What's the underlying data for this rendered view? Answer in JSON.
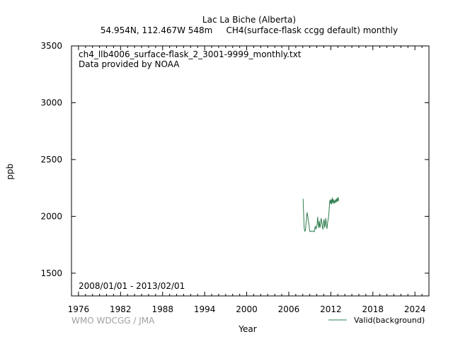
{
  "header": {
    "line1": "Lac La Biche (Alberta)",
    "line2": "54.954N, 112.467W 548m     CH4(surface-flask ccgg default) monthly"
  },
  "annotations": {
    "filename": "ch4_llb4006_surface-flask_2_3001-9999_monthly.txt",
    "provider": "Data provided by NOAA",
    "date_range": "2008/01/01 - 2013/02/01"
  },
  "footer": {
    "credit": "WMO WDCGG / JMA"
  },
  "colors": {
    "series": "#2e7d4f",
    "credit": "#a0a0a0"
  },
  "chart_data": {
    "type": "line",
    "xlabel": "Year",
    "ylabel": "ppb",
    "xlim": [
      1975,
      2026
    ],
    "ylim": [
      1300,
      3500
    ],
    "xticks": [
      1976,
      1982,
      1988,
      1994,
      2000,
      2006,
      2012,
      2018,
      2024
    ],
    "yticks": [
      1500,
      2000,
      2500,
      3000,
      3500
    ],
    "grid": false,
    "legend_position": "bottom-right",
    "series": [
      {
        "name": "Valid(background)",
        "x": [
          2008.04,
          2008.12,
          2008.21,
          2008.29,
          2008.37,
          2008.46,
          2008.54,
          2008.62,
          2008.71,
          2008.79,
          2008.87,
          2008.96,
          2009.04,
          2009.12,
          2009.21,
          2009.29,
          2009.37,
          2009.46,
          2009.54,
          2009.62,
          2009.71,
          2009.79,
          2009.87,
          2009.96,
          2010.04,
          2010.12,
          2010.21,
          2010.29,
          2010.37,
          2010.46,
          2010.54,
          2010.62,
          2010.71,
          2010.79,
          2010.87,
          2010.96,
          2011.04,
          2011.12,
          2011.21,
          2011.29,
          2011.37,
          2011.46,
          2011.54,
          2011.62,
          2011.71,
          2011.79,
          2011.87,
          2011.96,
          2012.04,
          2012.12,
          2012.21,
          2012.29,
          2012.37,
          2012.46,
          2012.54,
          2012.62,
          2012.71,
          2012.79,
          2012.87,
          2012.96,
          2013.04,
          2013.12
        ],
        "y": [
          2155,
          2010,
          1895,
          1870,
          1875,
          1930,
          1985,
          2035,
          2005,
          1955,
          1940,
          1880,
          1865,
          1870,
          1870,
          1870,
          1870,
          1870,
          1870,
          1865,
          1890,
          1915,
          1890,
          1900,
          1930,
          1995,
          1935,
          1900,
          1960,
          1900,
          1935,
          1985,
          1955,
          1910,
          1885,
          1945,
          1975,
          1900,
          1935,
          1985,
          1925,
          1890,
          1945,
          1970,
          2010,
          2085,
          2145,
          2110,
          2150,
          2105,
          2165,
          2120,
          2150,
          2110,
          2140,
          2120,
          2150,
          2125,
          2160,
          2130,
          2170,
          2135
        ]
      }
    ]
  }
}
